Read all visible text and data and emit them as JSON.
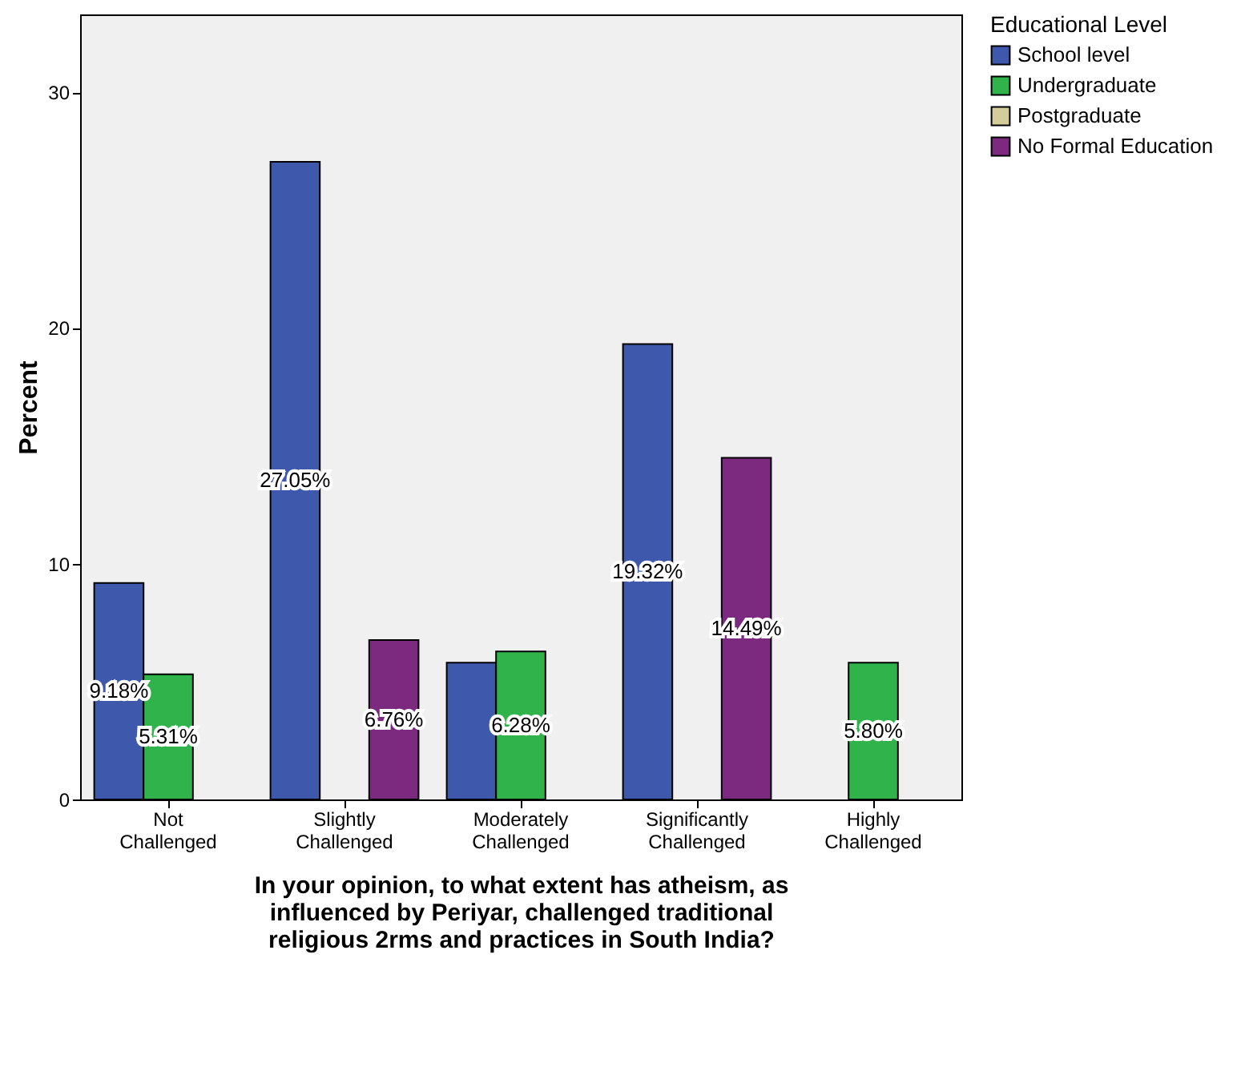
{
  "chart_data": {
    "type": "bar",
    "xlabel": "In your opinion, to what extent has atheism, as\ninfluenced by Periyar, challenged traditional\nreligious 2rms and practices in South India?",
    "ylabel": "Percent",
    "legend_title": "Educational Level",
    "categories": [
      "Not Challenged",
      "Slightly Challenged",
      "Moderately Challenged",
      "Significantly Challenged",
      "Highly Challenged"
    ],
    "series": [
      {
        "name": "School level",
        "color": "#3e58ac",
        "values": [
          9.18,
          27.05,
          5.8,
          19.32,
          null
        ],
        "value_labels": [
          "9.18%",
          "27.05%",
          null,
          "19.32%",
          null
        ]
      },
      {
        "name": "Undergraduate",
        "color": "#2fb34a",
        "values": [
          5.31,
          null,
          6.28,
          null,
          5.8
        ],
        "value_labels": [
          "5.31%",
          null,
          "6.28%",
          null,
          "5.80%"
        ]
      },
      {
        "name": "Postgraduate",
        "color": "#d4cc9a",
        "values": [
          null,
          null,
          null,
          null,
          null
        ]
      },
      {
        "name": "No Formal Education",
        "color": "#7b2a7f",
        "values": [
          null,
          6.76,
          null,
          14.49,
          null
        ],
        "value_labels": [
          null,
          "6.76%",
          null,
          "14.49%",
          null
        ]
      }
    ],
    "ylim": [
      0,
      33.3
    ],
    "yticks": [
      0,
      10,
      20,
      30
    ],
    "grid": false,
    "legend": "right"
  }
}
